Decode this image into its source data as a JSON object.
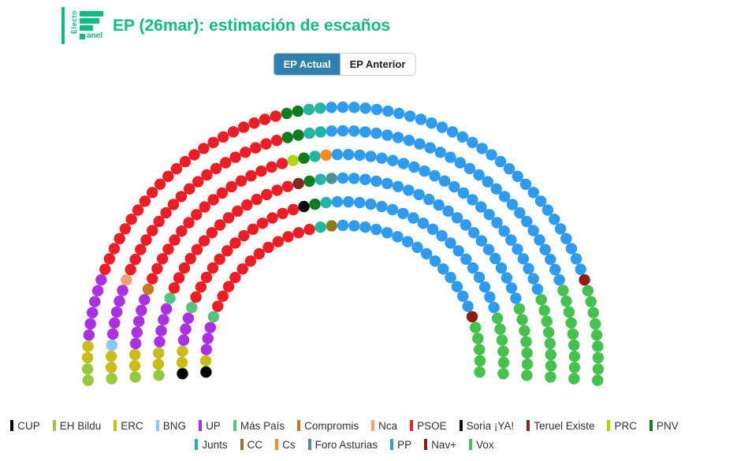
{
  "header": {
    "logo": {
      "vertical_text": "Electo",
      "bottom_text": "anel"
    },
    "title": "EP (26mar): estimación de escaños"
  },
  "tabs": [
    {
      "label": "EP Actual",
      "active": true
    },
    {
      "label": "EP Anterior",
      "active": false
    }
  ],
  "colors": {
    "background": "#FFFFFF",
    "brand_green": "#0DBE7F",
    "tab_active_bg": "#2E81AC",
    "tab_active_text": "#FFFFFF",
    "tab_inactive_text": "#1F1F1F",
    "legend_text": "#333333"
  },
  "chart_data": {
    "type": "pie",
    "variant": "parliament-hemicycle",
    "title": "EP (26mar): estimación de escaños",
    "total_seats": 350,
    "legend_position": "bottom",
    "series": [
      {
        "name": "CUP",
        "seats": 2,
        "color": "#000000"
      },
      {
        "name": "EH Bildu",
        "seats": 5,
        "color": "#97C93B"
      },
      {
        "name": "ERC",
        "seats": 11,
        "color": "#CBBD17"
      },
      {
        "name": "BNG",
        "seats": 1,
        "color": "#8CC9F0"
      },
      {
        "name": "UP",
        "seats": 26,
        "color": "#AC2FE4"
      },
      {
        "name": "Más País",
        "seats": 3,
        "color": "#55C57E"
      },
      {
        "name": "Compromis",
        "seats": 1,
        "color": "#C97A1C"
      },
      {
        "name": "Nca",
        "seats": 1,
        "color": "#FA9E79"
      },
      {
        "name": "PSOE",
        "seats": 98,
        "color": "#EE1D25"
      },
      {
        "name": "Soria ¡YA!",
        "seats": 1,
        "color": "#0A0A0A"
      },
      {
        "name": "Teruel Existe",
        "seats": 1,
        "color": "#84291C"
      },
      {
        "name": "PRC",
        "seats": 1,
        "color": "#A9D714"
      },
      {
        "name": "PNV",
        "seats": 7,
        "color": "#0F7D1E"
      },
      {
        "name": "Junts",
        "seats": 8,
        "color": "#22B5A5"
      },
      {
        "name": "CC",
        "seats": 1,
        "color": "#8E7D1B"
      },
      {
        "name": "Cs",
        "seats": 1,
        "color": "#FB8A1E"
      },
      {
        "name": "Foro Asturias",
        "seats": 1,
        "color": "#4F8F9C"
      },
      {
        "name": "PP",
        "seats": 135,
        "color": "#2D9BF0"
      },
      {
        "name": "Nav+",
        "seats": 2,
        "color": "#8E1C14"
      },
      {
        "name": "Vox",
        "seats": 44,
        "color": "#44C24D"
      }
    ],
    "layout": {
      "center": [
        435,
        460
      ],
      "ring_radii": [
        174,
        204,
        234,
        264,
        294,
        324
      ],
      "ring_seats": [
        41,
        48,
        55,
        62,
        69,
        75
      ],
      "start_angle": -94,
      "end_angle": 94,
      "seat_radius": 7.2
    }
  },
  "legend": {
    "rows": [
      [
        "CUP",
        "EH Bildu",
        "ERC",
        "BNG",
        "UP",
        "Más País",
        "Compromis",
        "Nca",
        "PSOE",
        "Soria ¡YA!",
        "Teruel Existe",
        "PRC",
        "PNV"
      ],
      [
        "Junts",
        "CC",
        "Cs",
        "Foro Asturias",
        "PP",
        "Nav+",
        "Vox"
      ]
    ]
  }
}
